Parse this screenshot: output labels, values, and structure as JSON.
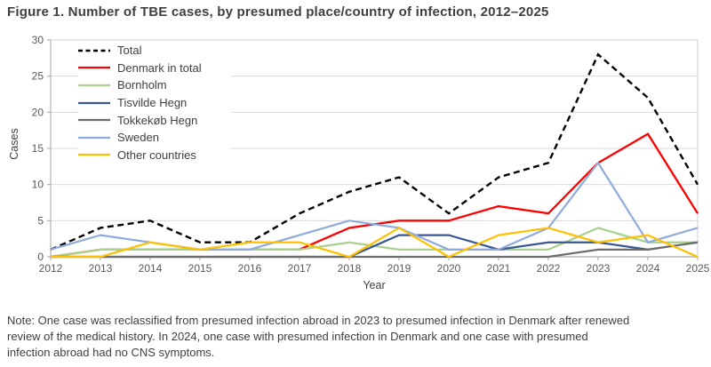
{
  "title": "Figure 1. Number of TBE cases, by presumed place/country of infection, 2012–2025",
  "note_lines": [
    "Note: One case was reclassified from presumed infection abroad in 2023 to presumed infection in Denmark after renewed",
    "review of the medical history. In 2024, one case with presumed infection in Denmark and one case with presumed",
    "infection abroad had no CNS symptoms."
  ],
  "chart_data": {
    "type": "line",
    "title": "Figure 1. Number of TBE cases, by presumed place/country of infection, 2012–2025",
    "xlabel": "Year",
    "ylabel": "Cases",
    "x": [
      2012,
      2013,
      2014,
      2015,
      2016,
      2017,
      2018,
      2019,
      2020,
      2021,
      2022,
      2023,
      2024,
      2025
    ],
    "ylim": [
      0,
      30
    ],
    "yticks": [
      0,
      5,
      10,
      15,
      20,
      25,
      30
    ],
    "grid": "horizontal",
    "legend_position": "inside-top-left",
    "colors": {
      "grid": "#d9d9d9",
      "plot_border": "#d0d0d0",
      "axis": "#a6a6a6",
      "tick_label": "#595959"
    },
    "series": [
      {
        "name": "Total",
        "color": "#000000",
        "dash": "7 4.5",
        "width": 2.4,
        "values": [
          1,
          4,
          5,
          2,
          2,
          6,
          9,
          11,
          6,
          11,
          13,
          28,
          22,
          10
        ]
      },
      {
        "name": "Denmark in total",
        "color": "#ff0000",
        "dash": null,
        "width": 2.3,
        "values": [
          0,
          1,
          1,
          1,
          1,
          1,
          4,
          5,
          5,
          7,
          6,
          13,
          17,
          6
        ]
      },
      {
        "name": "Bornholm",
        "color": "#a9d18e",
        "dash": null,
        "width": 2.2,
        "values": [
          0,
          1,
          1,
          1,
          1,
          1,
          2,
          1,
          1,
          1,
          1,
          4,
          2,
          2
        ]
      },
      {
        "name": "Tisvilde Hegn",
        "color": "#3a5795",
        "dash": null,
        "width": 2.2,
        "values": [
          0,
          0,
          0,
          0,
          0,
          0,
          0,
          3,
          3,
          1,
          2,
          2,
          1,
          2
        ]
      },
      {
        "name": "Tokkekøb Hegn",
        "color": "#6e6e6e",
        "dash": null,
        "width": 2.2,
        "values": [
          0,
          0,
          0,
          0,
          0,
          0,
          0,
          0,
          0,
          0,
          0,
          1,
          1,
          2
        ]
      },
      {
        "name": "Sweden",
        "color": "#8faadc",
        "dash": null,
        "width": 2.2,
        "values": [
          1,
          3,
          2,
          1,
          1,
          3,
          5,
          4,
          1,
          1,
          4,
          13,
          2,
          4
        ]
      },
      {
        "name": "Other countries",
        "color": "#ffc000",
        "dash": null,
        "width": 2.2,
        "values": [
          0,
          0,
          2,
          1,
          2,
          2,
          0,
          4,
          0,
          3,
          4,
          2,
          3,
          0
        ]
      }
    ]
  }
}
